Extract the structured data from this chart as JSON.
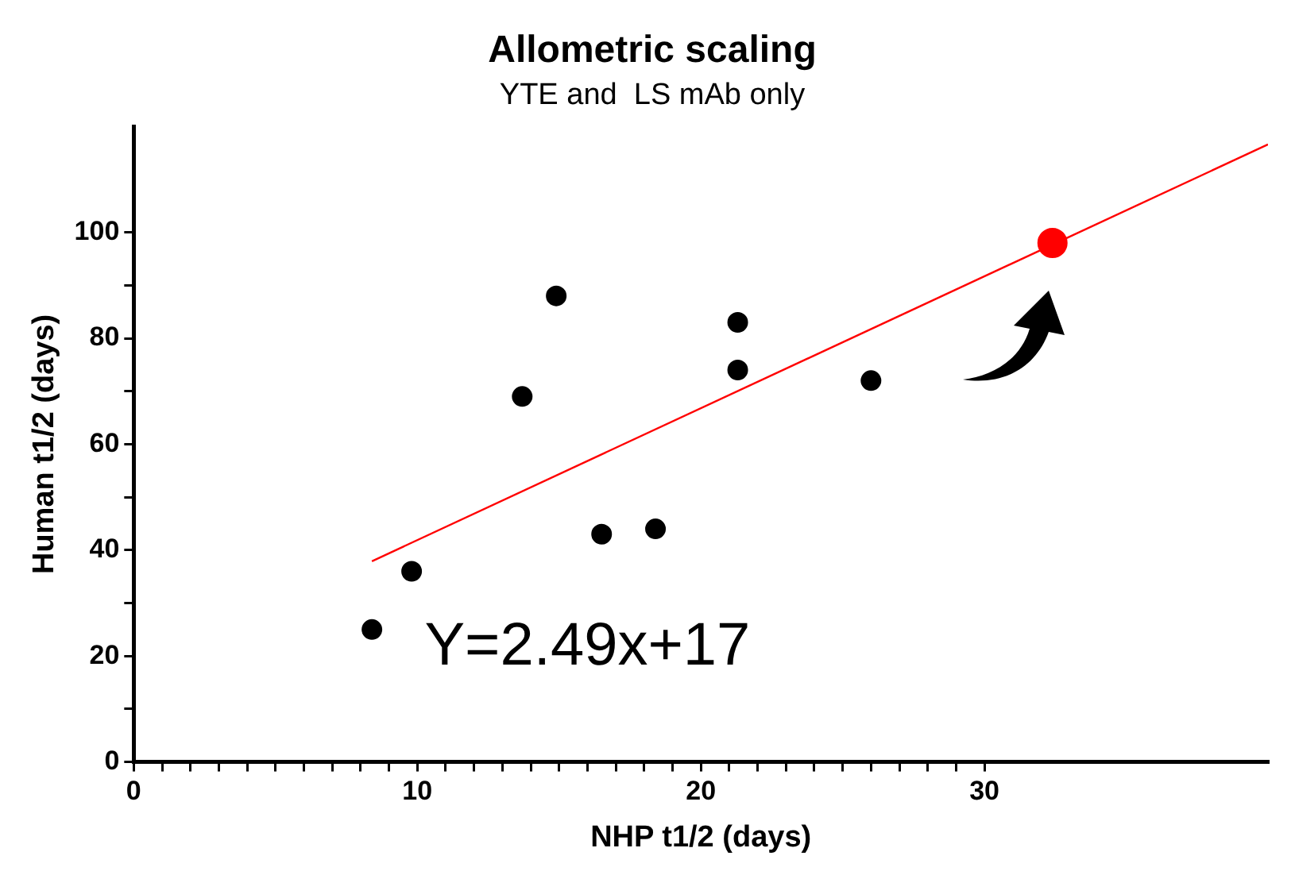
{
  "chart_data": {
    "type": "scatter",
    "title": "Allometric scaling",
    "subtitle": "YTE and  LS mAb only",
    "xlabel": "NHP t1/2 (days)",
    "ylabel": "Human t1/2 (days)",
    "series": [
      {
        "type": "scatter",
        "marker": "circle",
        "color": "#000000",
        "x": [
          8.4,
          9.8,
          13.7,
          14.9,
          16.5,
          18.4,
          21.3,
          21.3,
          26.0
        ],
        "values": [
          25,
          36,
          69,
          88,
          43,
          44,
          83,
          74,
          72
        ]
      },
      {
        "type": "scatter",
        "marker": "circle",
        "color": "#ff0000",
        "x": [
          32.4
        ],
        "values": [
          98
        ]
      },
      {
        "type": "line",
        "color": "#ff0000",
        "x": [
          8.4,
          40
        ],
        "values": [
          37.9,
          116.6
        ]
      }
    ],
    "xlim": [
      0,
      40
    ],
    "ylim": [
      0,
      120
    ],
    "xticks": [
      0,
      {
        "value": 1,
        "label": null
      },
      {
        "value": 2,
        "label": null
      },
      {
        "value": 3,
        "label": null
      },
      {
        "value": 4,
        "label": null
      },
      {
        "value": 5,
        "label": null
      },
      {
        "value": 6,
        "label": null
      },
      {
        "value": 7,
        "label": null
      },
      {
        "value": 8,
        "label": null
      },
      {
        "value": 9,
        "label": null
      },
      10,
      {
        "value": 11,
        "label": null
      },
      {
        "value": 12,
        "label": null
      },
      {
        "value": 13,
        "label": null
      },
      {
        "value": 14,
        "label": null
      },
      {
        "value": 15,
        "label": null
      },
      {
        "value": 16,
        "label": null
      },
      {
        "value": 17,
        "label": null
      },
      {
        "value": 18,
        "label": null
      },
      {
        "value": 19,
        "label": null
      },
      20,
      {
        "value": 21,
        "label": null
      },
      {
        "value": 22,
        "label": null
      },
      {
        "value": 23,
        "label": null
      },
      {
        "value": 24,
        "label": null
      },
      {
        "value": 25,
        "label": null
      },
      {
        "value": 26,
        "label": null
      },
      {
        "value": 27,
        "label": null
      },
      {
        "value": 28,
        "label": null
      },
      {
        "value": 29,
        "label": null
      },
      30
    ],
    "yticks": [
      0,
      {
        "value": 10,
        "label": null
      },
      20,
      {
        "value": 30,
        "label": null
      },
      40,
      {
        "value": 50,
        "label": null
      },
      60,
      {
        "value": 70,
        "label": null
      },
      80,
      {
        "value": 90,
        "label": null
      },
      100
    ],
    "annotations": [
      "Y=2.49x+17"
    ],
    "grid": false,
    "legend": false
  }
}
